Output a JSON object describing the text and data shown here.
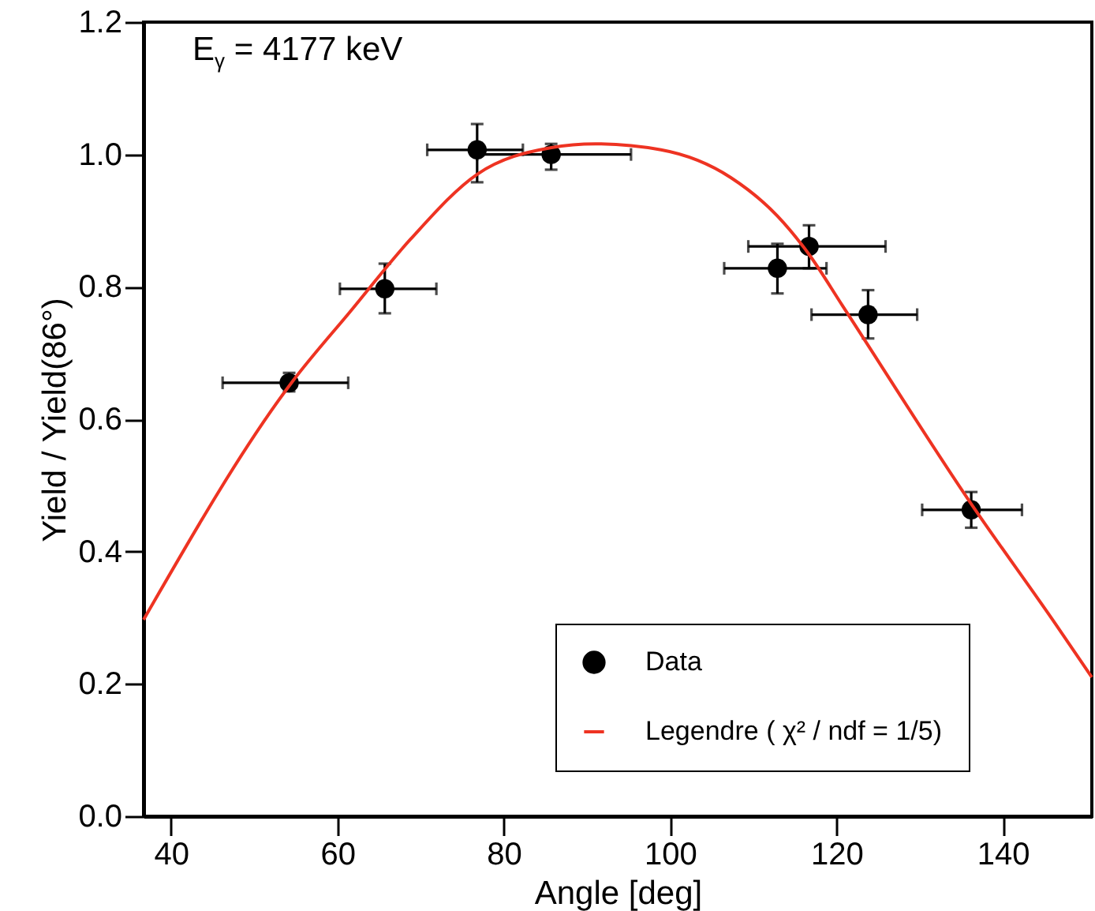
{
  "chart_data": {
    "type": "scatter",
    "xlabel": "Angle [deg]",
    "ylabel": "Yield / Yield(86°)",
    "annotations": [
      "E$_{γ}$ = 4177 keV"
    ],
    "xlim": [
      36.7,
      150.7
    ],
    "xticks": [
      40,
      60,
      80,
      100,
      120,
      140
    ],
    "ylim": [
      0,
      1.2
    ],
    "yticks": [
      {
        "value": 0,
        "label": "0.0"
      },
      0.2,
      0.4,
      0.6,
      0.8,
      {
        "value": 1,
        "label": "1.0"
      },
      1.2
    ],
    "grid": false,
    "legend": "bottom right",
    "series": [
      {
        "name": "Data",
        "marker": "circle",
        "color": "#000000",
        "x": [
          54.2,
          65.7,
          76.8,
          85.7,
          112.9,
          116.7,
          123.8,
          136.2
        ],
        "values": [
          0.655,
          0.797,
          1.007,
          1.0,
          0.828,
          0.861,
          0.758,
          0.463
        ],
        "errors": [
          [
            0.642,
            0.67
          ],
          [
            0.76,
            0.835
          ],
          [
            0.958,
            1.046
          ],
          [
            0.977,
            1.016
          ],
          [
            0.79,
            0.865
          ],
          [
            0.828,
            0.893
          ],
          [
            0.722,
            0.795
          ],
          [
            0.436,
            0.49
          ]
        ],
        "xerrors": [
          [
            46.2,
            61.3
          ],
          [
            60.3,
            71.9
          ],
          [
            70.8,
            82.3
          ],
          [
            76.8,
            95.3
          ],
          [
            106.5,
            118.8
          ],
          [
            109.4,
            125.9
          ],
          [
            117.0,
            129.7
          ],
          [
            130.3,
            142.3
          ]
        ]
      },
      {
        "name": "Legendre ( χ² / ndf = 1/5)",
        "type": "line",
        "color": "#ee3322",
        "x": [
          36.7,
          54.6,
          61.5,
          68.8,
          76.8,
          85.6,
          91,
          98.9,
          107.3,
          112.9,
          116.7,
          120.7,
          136.2,
          146.2,
          150.7
        ],
        "values": [
          0.297,
          0.657,
          0.762,
          0.872,
          0.97,
          1.01,
          1.016,
          1.007,
          0.965,
          0.907,
          0.849,
          0.772,
          0.472,
          0.293,
          0.21
        ]
      }
    ]
  }
}
